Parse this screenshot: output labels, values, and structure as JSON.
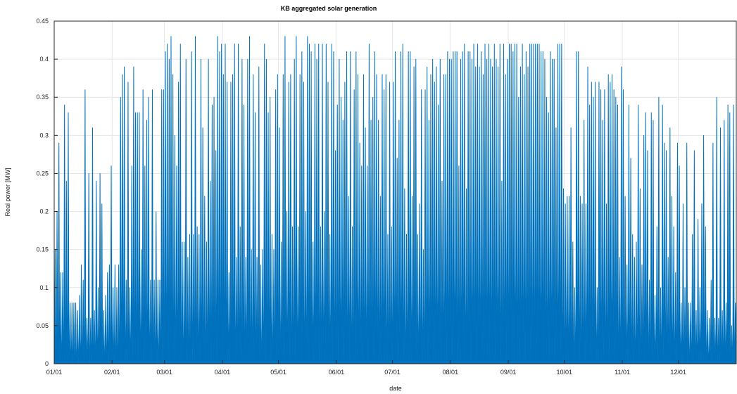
{
  "chart_data": {
    "type": "area",
    "title": "KB aggregated solar generation",
    "xlabel": "date",
    "ylabel": "Real power [MW]",
    "xlim": [
      "01/01",
      "12/31"
    ],
    "ylim": [
      0,
      0.45
    ],
    "yticks": [
      0,
      0.05,
      0.1,
      0.15,
      0.2,
      0.25,
      0.3,
      0.35,
      0.4,
      0.45
    ],
    "ytick_labels": [
      "0",
      "0.05",
      "0.1",
      "0.15",
      "0.2",
      "0.25",
      "0.3",
      "0.35",
      "0.4",
      "0.45"
    ],
    "xticks": [
      "01/01",
      "02/01",
      "03/01",
      "04/01",
      "05/01",
      "06/01",
      "07/01",
      "08/01",
      "09/01",
      "10/01",
      "11/01",
      "12/01"
    ],
    "grid": true,
    "colors": {
      "series": "#0072BD",
      "grid": "#e6e6e6",
      "axis": "#262626"
    },
    "series": [
      {
        "x": [
          "01/01",
          "01/02",
          "01/03",
          "01/04",
          "01/05",
          "01/06",
          "01/07",
          "01/08",
          "01/09",
          "01/10",
          "01/11",
          "01/12",
          "01/13",
          "01/14",
          "01/15",
          "01/16",
          "01/17",
          "01/18",
          "01/19",
          "01/20",
          "01/21",
          "01/22",
          "01/23",
          "01/24",
          "01/25",
          "01/26",
          "01/27",
          "01/28",
          "01/29",
          "01/30",
          "01/31",
          "02/01",
          "02/02",
          "02/03",
          "02/04",
          "02/05",
          "02/06",
          "02/07",
          "02/08",
          "02/09",
          "02/10",
          "02/11",
          "02/12",
          "02/13",
          "02/14",
          "02/15",
          "02/16",
          "02/17",
          "02/18",
          "02/19",
          "02/20",
          "02/21",
          "02/22",
          "02/23",
          "02/24",
          "02/25",
          "02/26",
          "02/27",
          "02/28",
          "03/01",
          "03/02",
          "03/03",
          "03/04",
          "03/05",
          "03/06",
          "03/07",
          "03/08",
          "03/09",
          "03/10",
          "03/11",
          "03/12",
          "03/13",
          "03/14",
          "03/15",
          "03/16",
          "03/17",
          "03/18",
          "03/19",
          "03/20",
          "03/21",
          "03/22",
          "03/23",
          "03/24",
          "03/25",
          "03/26",
          "03/27",
          "03/28",
          "03/29",
          "03/30",
          "03/31",
          "04/01",
          "04/02",
          "04/03",
          "04/04",
          "04/05",
          "04/06",
          "04/07",
          "04/08",
          "04/09",
          "04/10",
          "04/11",
          "04/12",
          "04/13",
          "04/14",
          "04/15",
          "04/16",
          "04/17",
          "04/18",
          "04/19",
          "04/20",
          "04/21",
          "04/22",
          "04/23",
          "04/24",
          "04/25",
          "04/26",
          "04/27",
          "04/28",
          "04/29",
          "04/30",
          "05/01",
          "05/02",
          "05/03",
          "05/04",
          "05/05",
          "05/06",
          "05/07",
          "05/08",
          "05/09",
          "05/10",
          "05/11",
          "05/12",
          "05/13",
          "05/14",
          "05/15",
          "05/16",
          "05/17",
          "05/18",
          "05/19",
          "05/20",
          "05/21",
          "05/22",
          "05/23",
          "05/24",
          "05/25",
          "05/26",
          "05/27",
          "05/28",
          "05/29",
          "05/30",
          "05/31",
          "06/01",
          "06/02",
          "06/03",
          "06/04",
          "06/05",
          "06/06",
          "06/07",
          "06/08",
          "06/09",
          "06/10",
          "06/11",
          "06/12",
          "06/13",
          "06/14",
          "06/15",
          "06/16",
          "06/17",
          "06/18",
          "06/19",
          "06/20",
          "06/21",
          "06/22",
          "06/23",
          "06/24",
          "06/25",
          "06/26",
          "06/27",
          "06/28",
          "06/29",
          "06/30",
          "07/01",
          "07/02",
          "07/03",
          "07/04",
          "07/05",
          "07/06",
          "07/07",
          "07/08",
          "07/09",
          "07/10",
          "07/11",
          "07/12",
          "07/13",
          "07/14",
          "07/15",
          "07/16",
          "07/17",
          "07/18",
          "07/19",
          "07/20",
          "07/21",
          "07/22",
          "07/23",
          "07/24",
          "07/25",
          "07/26",
          "07/27",
          "07/28",
          "07/29",
          "07/30",
          "07/31",
          "08/01",
          "08/02",
          "08/03",
          "08/04",
          "08/05",
          "08/06",
          "08/07",
          "08/08",
          "08/09",
          "08/10",
          "08/11",
          "08/12",
          "08/13",
          "08/14",
          "08/15",
          "08/16",
          "08/17",
          "08/18",
          "08/19",
          "08/20",
          "08/21",
          "08/22",
          "08/23",
          "08/24",
          "08/25",
          "08/26",
          "08/27",
          "08/28",
          "08/29",
          "08/30",
          "08/31",
          "09/01",
          "09/02",
          "09/03",
          "09/04",
          "09/05",
          "09/06",
          "09/07",
          "09/08",
          "09/09",
          "09/10",
          "09/11",
          "09/12",
          "09/13",
          "09/14",
          "09/15",
          "09/16",
          "09/17",
          "09/18",
          "09/19",
          "09/20",
          "09/21",
          "09/22",
          "09/23",
          "09/24",
          "09/25",
          "09/26",
          "09/27",
          "09/28",
          "09/29",
          "09/30",
          "10/01",
          "10/02",
          "10/03",
          "10/04",
          "10/05",
          "10/06",
          "10/07",
          "10/08",
          "10/09",
          "10/10",
          "10/11",
          "10/12",
          "10/13",
          "10/14",
          "10/15",
          "10/16",
          "10/17",
          "10/18",
          "10/19",
          "10/20",
          "10/21",
          "10/22",
          "10/23",
          "10/24",
          "10/25",
          "10/26",
          "10/27",
          "10/28",
          "10/29",
          "10/30",
          "10/31",
          "11/01",
          "11/02",
          "11/03",
          "11/04",
          "11/05",
          "11/06",
          "11/07",
          "11/08",
          "11/09",
          "11/10",
          "11/11",
          "11/12",
          "11/13",
          "11/14",
          "11/15",
          "11/16",
          "11/17",
          "11/18",
          "11/19",
          "11/20",
          "11/21",
          "11/22",
          "11/23",
          "11/24",
          "11/25",
          "11/26",
          "11/27",
          "11/28",
          "11/29",
          "11/30",
          "12/01",
          "12/02",
          "12/03",
          "12/04",
          "12/05",
          "12/06",
          "12/07",
          "12/08",
          "12/09",
          "12/10",
          "12/11",
          "12/12",
          "12/13",
          "12/14",
          "12/15",
          "12/16",
          "12/17",
          "12/18",
          "12/19",
          "12/20",
          "12/21",
          "12/22",
          "12/23",
          "12/24",
          "12/25",
          "12/26",
          "12/27",
          "12/28",
          "12/29",
          "12/30",
          "12/31"
        ],
        "peak": [
          0.15,
          0.2,
          0.29,
          0.12,
          0.12,
          0.34,
          0.24,
          0.33,
          0.08,
          0.08,
          0.08,
          0.08,
          0.07,
          0.09,
          0.13,
          0.11,
          0.36,
          0.06,
          0.25,
          0.06,
          0.31,
          0.07,
          0.24,
          0.1,
          0.25,
          0.21,
          0.07,
          0.09,
          0.12,
          0.13,
          0.26,
          0.1,
          0.13,
          0.1,
          0.13,
          0.35,
          0.38,
          0.39,
          0.11,
          0.37,
          0.1,
          0.26,
          0.39,
          0.33,
          0.33,
          0.33,
          0.15,
          0.36,
          0.26,
          0.32,
          0.35,
          0.11,
          0.36,
          0.11,
          0.2,
          0.11,
          0.11,
          0.36,
          0.36,
          0.41,
          0.42,
          0.4,
          0.43,
          0.38,
          0.3,
          0.26,
          0.37,
          0.42,
          0.16,
          0.16,
          0.4,
          0.14,
          0.17,
          0.41,
          0.17,
          0.43,
          0.18,
          0.17,
          0.4,
          0.31,
          0.22,
          0.16,
          0.4,
          0.24,
          0.34,
          0.35,
          0.28,
          0.43,
          0.41,
          0.42,
          0.38,
          0.42,
          0.37,
          0.12,
          0.37,
          0.38,
          0.42,
          0.14,
          0.42,
          0.18,
          0.4,
          0.34,
          0.14,
          0.4,
          0.43,
          0.15,
          0.38,
          0.33,
          0.14,
          0.39,
          0.13,
          0.15,
          0.42,
          0.4,
          0.33,
          0.35,
          0.17,
          0.15,
          0.36,
          0.38,
          0.31,
          0.16,
          0.38,
          0.43,
          0.2,
          0.37,
          0.38,
          0.18,
          0.4,
          0.43,
          0.18,
          0.38,
          0.41,
          0.37,
          0.2,
          0.43,
          0.42,
          0.41,
          0.16,
          0.42,
          0.4,
          0.42,
          0.18,
          0.42,
          0.2,
          0.42,
          0.37,
          0.17,
          0.42,
          0.41,
          0.28,
          0.34,
          0.4,
          0.35,
          0.32,
          0.37,
          0.41,
          0.22,
          0.41,
          0.18,
          0.36,
          0.41,
          0.38,
          0.29,
          0.26,
          0.38,
          0.31,
          0.26,
          0.42,
          0.32,
          0.35,
          0.41,
          0.38,
          0.32,
          0.22,
          0.38,
          0.36,
          0.38,
          0.17,
          0.37,
          0.18,
          0.37,
          0.41,
          0.27,
          0.32,
          0.41,
          0.42,
          0.23,
          0.17,
          0.41,
          0.41,
          0.22,
          0.39,
          0.4,
          0.17,
          0.21,
          0.36,
          0.15,
          0.36,
          0.39,
          0.32,
          0.38,
          0.4,
          0.37,
          0.39,
          0.34,
          0.4,
          0.24,
          0.38,
          0.38,
          0.41,
          0.4,
          0.4,
          0.41,
          0.41,
          0.41,
          0.26,
          0.4,
          0.41,
          0.42,
          0.23,
          0.41,
          0.41,
          0.4,
          0.42,
          0.39,
          0.42,
          0.39,
          0.41,
          0.38,
          0.42,
          0.4,
          0.42,
          0.4,
          0.39,
          0.42,
          0.4,
          0.39,
          0.42,
          0.24,
          0.42,
          0.38,
          0.4,
          0.42,
          0.42,
          0.41,
          0.42,
          0.42,
          0.35,
          0.39,
          0.42,
          0.38,
          0.41,
          0.39,
          0.42,
          0.42,
          0.42,
          0.42,
          0.42,
          0.42,
          0.41,
          0.41,
          0.4,
          0.35,
          0.33,
          0.41,
          0.4,
          0.4,
          0.31,
          0.42,
          0.42,
          0.42,
          0.23,
          0.21,
          0.22,
          0.22,
          0.31,
          0.16,
          0.1,
          0.41,
          0.41,
          0.22,
          0.21,
          0.32,
          0.21,
          0.39,
          0.34,
          0.37,
          0.35,
          0.37,
          0.1,
          0.37,
          0.36,
          0.32,
          0.36,
          0.21,
          0.38,
          0.37,
          0.38,
          0.36,
          0.35,
          0.34,
          0.14,
          0.39,
          0.36,
          0.22,
          0.13,
          0.34,
          0.27,
          0.17,
          0.14,
          0.16,
          0.34,
          0.23,
          0.13,
          0.3,
          0.33,
          0.28,
          0.11,
          0.33,
          0.32,
          0.09,
          0.18,
          0.35,
          0.1,
          0.34,
          0.29,
          0.28,
          0.14,
          0.31,
          0.22,
          0.18,
          0.12,
          0.29,
          0.26,
          0.08,
          0.21,
          0.1,
          0.29,
          0.08,
          0.08,
          0.17,
          0.28,
          0.07,
          0.19,
          0.1,
          0.21,
          0.3,
          0.18,
          0.07,
          0.06,
          0.11,
          0.29,
          0.06,
          0.35,
          0.06,
          0.31,
          0.07,
          0.32,
          0.08,
          0.34,
          0.33,
          0.05,
          0.34,
          0.08,
          0.1,
          0.11,
          0.07,
          0.16,
          0.17
        ]
      }
    ]
  }
}
